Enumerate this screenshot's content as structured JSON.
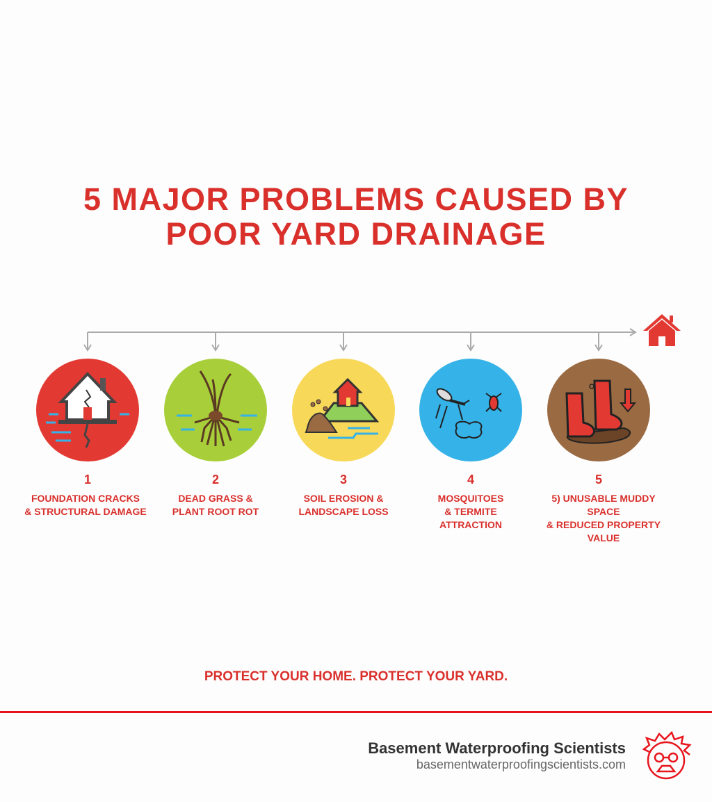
{
  "title": {
    "line1": "5 MAJOR PROBLEMS CAUSED BY",
    "line2": "POOR YARD DRAINAGE"
  },
  "colors": {
    "accent": "#d9302c",
    "red": "#e23a33",
    "green": "#a8cf3a",
    "yellow": "#f7d858",
    "blue": "#35b2e8",
    "brown": "#9a6a43"
  },
  "problems": [
    {
      "number": "1",
      "line1": "FOUNDATION CRACKS",
      "line2": "& STRUCTURAL DAMAGE",
      "line3": "",
      "icon": "cracked-house-icon"
    },
    {
      "number": "2",
      "line1": "DEAD GRASS &",
      "line2": "PLANT ROOT ROT",
      "line3": "",
      "icon": "grass-roots-icon"
    },
    {
      "number": "3",
      "line1": "SOIL EROSION &",
      "line2": "LANDSCAPE LOSS",
      "line3": "",
      "icon": "soil-erosion-icon"
    },
    {
      "number": "4",
      "line1": "MOSQUITOES",
      "line2": "& TERMITE",
      "line3": "ATTRACTION",
      "icon": "mosquito-termite-icon"
    },
    {
      "number": "5",
      "line1": "5) UNUSABLE MUDDY SPACE",
      "line2": "& REDUCED PROPERTY VALUE",
      "line3": "",
      "icon": "muddy-boots-icon"
    }
  ],
  "tagline": "PROTECT YOUR HOME. PROTECT YOUR YARD.",
  "footer": {
    "brand": "Basement Waterproofing Scientists",
    "url": "basementwaterproofingscientists.com"
  }
}
